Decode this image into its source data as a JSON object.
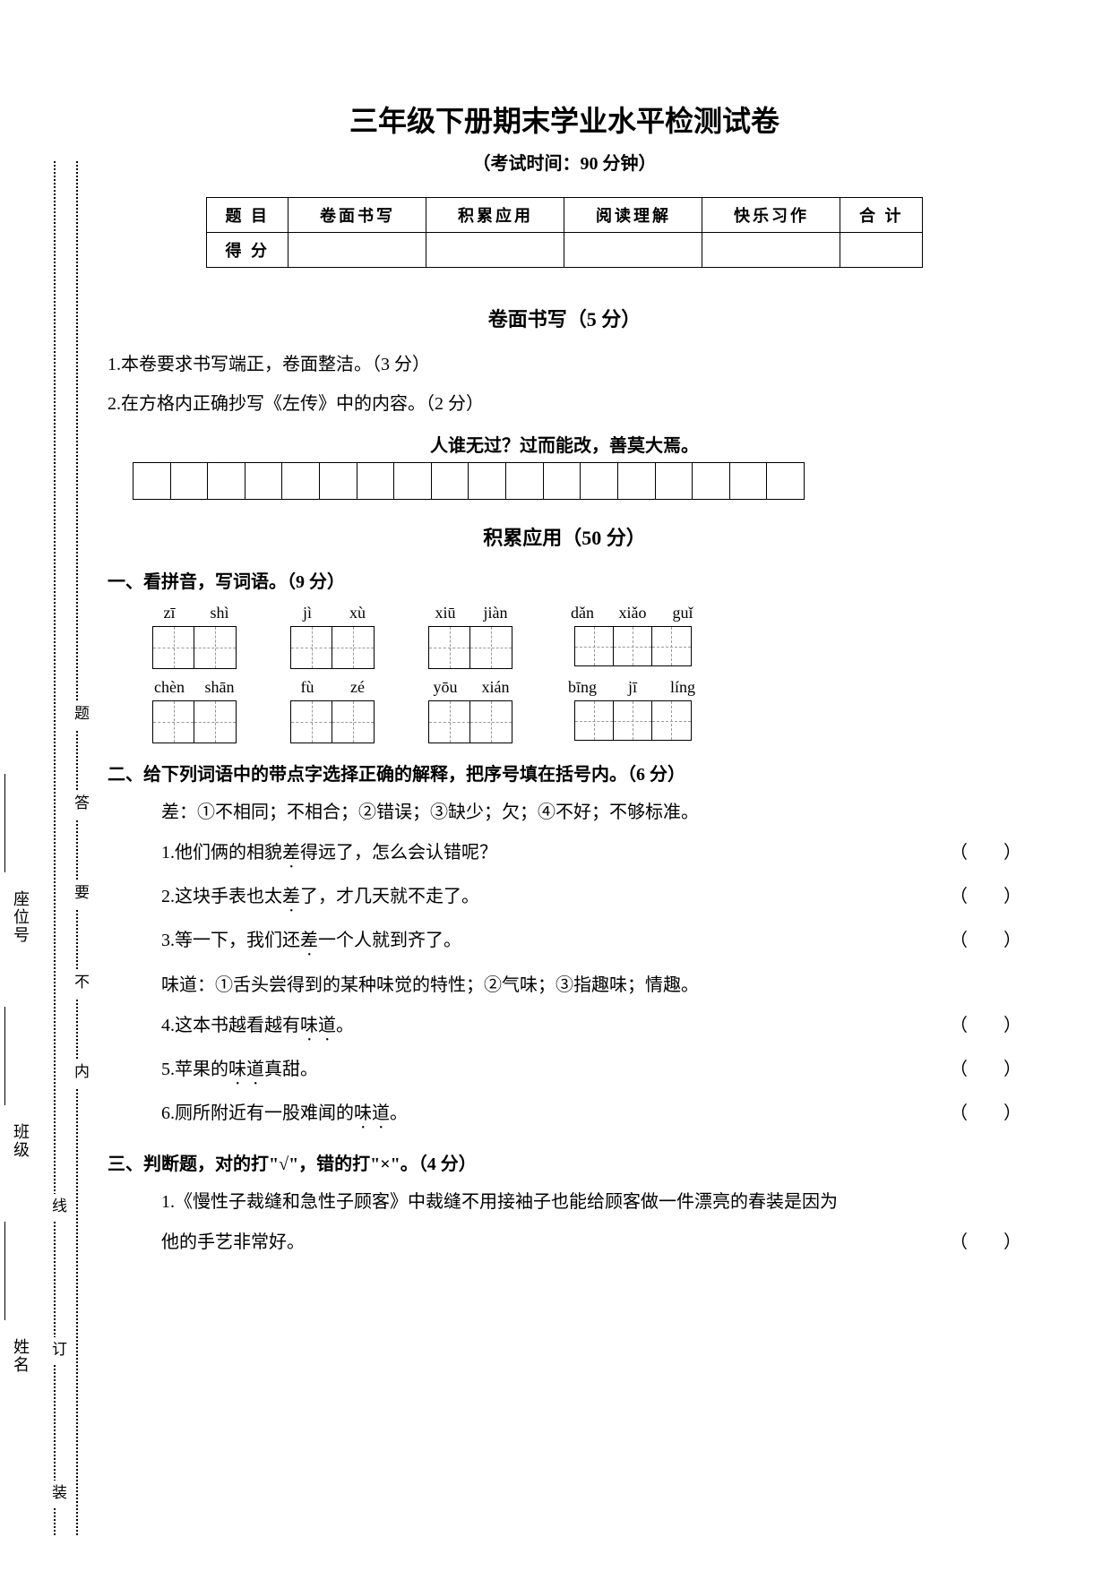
{
  "title": "三年级下册期末学业水平检测试卷",
  "subtitle": "（考试时间：90 分钟）",
  "score_table": {
    "headers": [
      "题 目",
      "卷面书写",
      "积累应用",
      "阅读理解",
      "快乐习作",
      "合 计"
    ],
    "row_label": "得 分"
  },
  "section1": {
    "heading": "卷面书写（5 分）",
    "item1": "1.本卷要求书写端正，卷面整洁。（3 分）",
    "item2": "2.在方格内正确抄写《左传》中的内容。（2 分）",
    "quote": "人谁无过？过而能改，善莫大焉。",
    "grid_cells": 18
  },
  "section2": {
    "heading": "积累应用（50 分）",
    "q1": {
      "title": "一、看拼音，写词语。（9 分）",
      "rows": [
        [
          {
            "pinyin": [
              "zī",
              "shì"
            ],
            "cells": 2
          },
          {
            "pinyin": [
              "jì",
              "xù"
            ],
            "cells": 2
          },
          {
            "pinyin": [
              "xiū",
              "jiàn"
            ],
            "cells": 2
          },
          {
            "pinyin": [
              "dǎn",
              "xiǎo",
              "guǐ"
            ],
            "cells": 3
          }
        ],
        [
          {
            "pinyin": [
              "chèn",
              "shān"
            ],
            "cells": 2
          },
          {
            "pinyin": [
              "fù",
              "zé"
            ],
            "cells": 2
          },
          {
            "pinyin": [
              "yōu",
              "xián"
            ],
            "cells": 2
          },
          {
            "pinyin": [
              "bīng",
              "jī",
              "líng"
            ],
            "cells": 3
          }
        ]
      ]
    },
    "q2": {
      "title": "二、给下列词语中的带点字选择正确的解释，把序号填在括号内。（6 分）",
      "def1": "差：①不相同；不相合；②错误；③缺少；欠；④不好；不够标准。",
      "items1": [
        {
          "pre": "1.他们俩的相貌",
          "em": "差",
          "post": "得远了，怎么会认错呢？"
        },
        {
          "pre": "2.这块手表也太",
          "em": "差",
          "post": "了，才几天就不走了。"
        },
        {
          "pre": "3.等一下，我们还",
          "em": "差",
          "post": "一个人就到齐了。"
        }
      ],
      "def2": "味道：①舌头尝得到的某种味觉的特性；②气味；③指趣味；情趣。",
      "items2": [
        {
          "pre": "4.这本书越看越有",
          "em": "味道",
          "post": "。"
        },
        {
          "pre": "5.苹果的",
          "em": "味道",
          "post": "真甜。"
        },
        {
          "pre": "6.厕所附近有一股难闻的",
          "em": "味道",
          "post": "。"
        }
      ]
    },
    "q3": {
      "title": "三、判断题，对的打\"√\"，错的打\"×\"。（4 分）",
      "items": [
        {
          "line1": "1.《慢性子裁缝和急性子顾客》中裁缝不用接袖子也能给顾客做一件漂亮的春装是因为",
          "line2": "他的手艺非常好。"
        }
      ]
    }
  },
  "binding": {
    "labels": [
      "姓名",
      "班级",
      "座位号"
    ],
    "chars": [
      "装",
      "订",
      "线",
      "内",
      "不",
      "要",
      "答",
      "题"
    ]
  },
  "paren_text": "（        ）",
  "colors": {
    "text": "#000000",
    "bg": "#ffffff",
    "dash": "#999999"
  }
}
